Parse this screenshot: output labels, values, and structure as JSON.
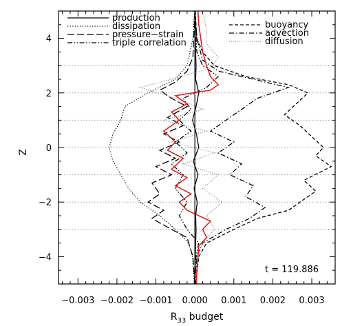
{
  "chart_data": {
    "type": "line",
    "xlabel_main": "R",
    "xlabel_sub": "33",
    "xlabel_rest": " budget",
    "ylabel": "Z",
    "xlim": [
      -0.0035,
      0.0036
    ],
    "ylim": [
      -5,
      5
    ],
    "x_ticks": [
      -0.003,
      -0.002,
      -0.001,
      0.0,
      0.001,
      0.002,
      0.003
    ],
    "x_tick_labels": [
      "−0.003",
      "−0.002",
      "−0.001",
      "0.000",
      "0.001",
      "0.002",
      "0.003"
    ],
    "y_ticks": [
      -4,
      -2,
      0,
      2,
      4
    ],
    "y_tick_labels": [
      "−4",
      "−2",
      "0",
      "2",
      "4"
    ],
    "reference_lines_z": [
      -3,
      -2,
      -1,
      0,
      1,
      2,
      3
    ],
    "annotation": "t = 119.886",
    "legend_left": [
      "production",
      "dissipation",
      "pressure−strain",
      "triple correlation"
    ],
    "legend_right": [
      "buoyancy",
      "advection",
      "diffusion"
    ],
    "series": [
      {
        "name": "production",
        "style": "solid",
        "color": "#000000",
        "points": [
          [
            -1e-05,
            -5
          ],
          [
            1e-05,
            -4
          ],
          [
            3e-05,
            -3
          ],
          [
            2e-05,
            -2.5
          ],
          [
            6e-05,
            -2
          ],
          [
            -2e-05,
            -1.5
          ],
          [
            8e-05,
            -1
          ],
          [
            -4e-05,
            -0.5
          ],
          [
            0.0001,
            0
          ],
          [
            4e-05,
            0.5
          ],
          [
            -6e-05,
            1
          ],
          [
            3e-05,
            1.5
          ],
          [
            0.0001,
            2
          ],
          [
            2e-05,
            2.5
          ],
          [
            3e-05,
            3
          ],
          [
            1e-05,
            4
          ],
          [
            0.0,
            5
          ]
        ]
      },
      {
        "name": "dissipation",
        "style": "dotted",
        "color": "#000000",
        "points": [
          [
            -2e-05,
            -5
          ],
          [
            -6e-05,
            -4
          ],
          [
            -0.00016,
            -3.5
          ],
          [
            -0.0005,
            -3
          ],
          [
            -0.0009,
            -2.5
          ],
          [
            -0.0014,
            -2
          ],
          [
            -0.0017,
            -1.5
          ],
          [
            -0.0019,
            -1
          ],
          [
            -0.0021,
            -0.5
          ],
          [
            -0.0022,
            0
          ],
          [
            -0.0021,
            0.5
          ],
          [
            -0.0019,
            1
          ],
          [
            -0.0018,
            1.5
          ],
          [
            -0.0012,
            2
          ],
          [
            -0.0005,
            2.5
          ],
          [
            -0.0002,
            3
          ],
          [
            -5e-05,
            4
          ],
          [
            -1e-05,
            5
          ]
        ]
      },
      {
        "name": "pressure−strain",
        "style": "longdash",
        "color": "#000000",
        "points": [
          [
            0.0,
            -5
          ],
          [
            -5e-05,
            -4
          ],
          [
            -0.0002,
            -3.3
          ],
          [
            -0.0006,
            -3
          ],
          [
            -0.0011,
            -2.6
          ],
          [
            -0.0008,
            -2.3
          ],
          [
            -0.0012,
            -2
          ],
          [
            -0.0009,
            -1.7
          ],
          [
            -0.0011,
            -1.3
          ],
          [
            -0.0006,
            -1
          ],
          [
            -0.001,
            -0.7
          ],
          [
            -0.0005,
            -0.4
          ],
          [
            -0.0009,
            -0.1
          ],
          [
            -0.0004,
            0.2
          ],
          [
            -0.0008,
            0.5
          ],
          [
            -0.0003,
            0.8
          ],
          [
            -0.0007,
            1.1
          ],
          [
            -0.0002,
            1.5
          ],
          [
            -0.0006,
            1.8
          ],
          [
            -0.0009,
            2.1
          ],
          [
            -0.0005,
            2.4
          ],
          [
            -0.0002,
            2.8
          ],
          [
            -5e-05,
            3.3
          ],
          [
            0.0,
            5
          ]
        ]
      },
      {
        "name": "triple correlation",
        "style": "dashdotdot",
        "color": "#000000",
        "points": [
          [
            0.0,
            -5
          ],
          [
            3e-05,
            -4
          ],
          [
            0.0001,
            -3.5
          ],
          [
            -0.0002,
            -3
          ],
          [
            -0.0004,
            -2.5
          ],
          [
            -0.0002,
            -2
          ],
          [
            -0.0005,
            -1.5
          ],
          [
            -0.0003,
            -1
          ],
          [
            -0.0006,
            -0.6
          ],
          [
            -0.0002,
            -0.2
          ],
          [
            -0.0005,
            0.2
          ],
          [
            -0.0001,
            0.6
          ],
          [
            -0.0004,
            1
          ],
          [
            -0.0001,
            1.4
          ],
          [
            -0.0003,
            1.8
          ],
          [
            0.0003,
            2.2
          ],
          [
            0.0006,
            2.6
          ],
          [
            0.0002,
            3
          ],
          [
            5e-05,
            3.5
          ],
          [
            0.0,
            5
          ]
        ]
      },
      {
        "name": "buoyancy",
        "style": "shortdash",
        "color": "#000000",
        "points": [
          [
            2e-05,
            -5
          ],
          [
            0.0001,
            -4
          ],
          [
            0.0003,
            -3.5
          ],
          [
            0.001,
            -3
          ],
          [
            0.0016,
            -2.6
          ],
          [
            0.0024,
            -2.3
          ],
          [
            0.0027,
            -2
          ],
          [
            0.0031,
            -1.6
          ],
          [
            0.0028,
            -1.2
          ],
          [
            0.0035,
            -0.7
          ],
          [
            0.0031,
            -0.3
          ],
          [
            0.0033,
            0
          ],
          [
            0.003,
            0.4
          ],
          [
            0.0027,
            0.8
          ],
          [
            0.0023,
            1.2
          ],
          [
            0.0026,
            1.6
          ],
          [
            0.0029,
            2
          ],
          [
            0.0024,
            2.3
          ],
          [
            0.0013,
            2.6
          ],
          [
            0.0005,
            3
          ],
          [
            0.0002,
            3.5
          ],
          [
            5e-05,
            4
          ],
          [
            1e-05,
            5
          ]
        ]
      },
      {
        "name": "advection",
        "style": "dashdot",
        "color": "#000000",
        "points": [
          [
            0.0,
            -5
          ],
          [
            5e-05,
            -4
          ],
          [
            0.0002,
            -3.5
          ],
          [
            0.0008,
            -3
          ],
          [
            0.0014,
            -2.6
          ],
          [
            0.0018,
            -2.2
          ],
          [
            0.0013,
            -1.8
          ],
          [
            0.0015,
            -1.4
          ],
          [
            0.0009,
            -1
          ],
          [
            0.0012,
            -0.6
          ],
          [
            0.0006,
            -0.2
          ],
          [
            0.001,
            0.2
          ],
          [
            0.0004,
            0.6
          ],
          [
            0.0008,
            1
          ],
          [
            0.0012,
            1.4
          ],
          [
            0.0016,
            1.8
          ],
          [
            0.0024,
            2.2
          ],
          [
            0.0015,
            2.5
          ],
          [
            0.0006,
            2.8
          ],
          [
            0.0002,
            3.2
          ],
          [
            5e-05,
            4
          ],
          [
            0.0,
            5
          ]
        ]
      },
      {
        "name": "diffusion",
        "style": "dottedgray",
        "color": "#888888",
        "points": [
          [
            0.0,
            -5
          ],
          [
            5e-05,
            -4
          ],
          [
            0.0002,
            -3.5
          ],
          [
            0.0005,
            -3
          ],
          [
            0.0003,
            -2.5
          ],
          [
            0.0007,
            -2
          ],
          [
            0.0002,
            -1.5
          ],
          [
            0.0006,
            -1
          ],
          [
            -0.0003,
            -0.6
          ],
          [
            0.0005,
            -0.2
          ],
          [
            -0.0006,
            0.2
          ],
          [
            0.0003,
            0.6
          ],
          [
            -0.0008,
            1
          ],
          [
            0.0002,
            1.4
          ],
          [
            -0.0005,
            1.8
          ],
          [
            -0.0014,
            2.2
          ],
          [
            -0.0006,
            2.5
          ],
          [
            0.0004,
            2.9
          ],
          [
            0.0006,
            3.3
          ],
          [
            0.0003,
            3.8
          ],
          [
            0.0003,
            4.3
          ],
          [
            0.0002,
            5
          ]
        ]
      },
      {
        "name": "",
        "style": "solid",
        "color": "#dd2222",
        "points": [
          [
            4e-05,
            -5
          ],
          [
            5e-05,
            -4.5
          ],
          [
            8e-05,
            -4
          ],
          [
            0.0001,
            -3.6
          ],
          [
            0.0003,
            -3.3
          ],
          [
            0.0002,
            -3
          ],
          [
            0.0004,
            -2.7
          ],
          [
            -0.0002,
            -2.3
          ],
          [
            -0.0004,
            -2
          ],
          [
            -0.0001,
            -1.7
          ],
          [
            -0.0005,
            -1.4
          ],
          [
            -0.0002,
            -1.1
          ],
          [
            -0.0006,
            -0.8
          ],
          [
            -0.0003,
            -0.4
          ],
          [
            -0.0007,
            -0.1
          ],
          [
            -0.0005,
            0.2
          ],
          [
            -0.0008,
            0.6
          ],
          [
            -0.0004,
            1
          ],
          [
            -0.0006,
            1.3
          ],
          [
            -0.0002,
            1.6
          ],
          [
            -0.0005,
            1.9
          ],
          [
            0.0004,
            2.1
          ],
          [
            0.0006,
            2.3
          ],
          [
            0.0004,
            2.6
          ],
          [
            0.0003,
            3
          ],
          [
            0.0002,
            3.5
          ],
          [
            0.00015,
            4
          ],
          [
            0.0001,
            4.5
          ],
          [
            8e-05,
            5
          ]
        ]
      }
    ]
  }
}
